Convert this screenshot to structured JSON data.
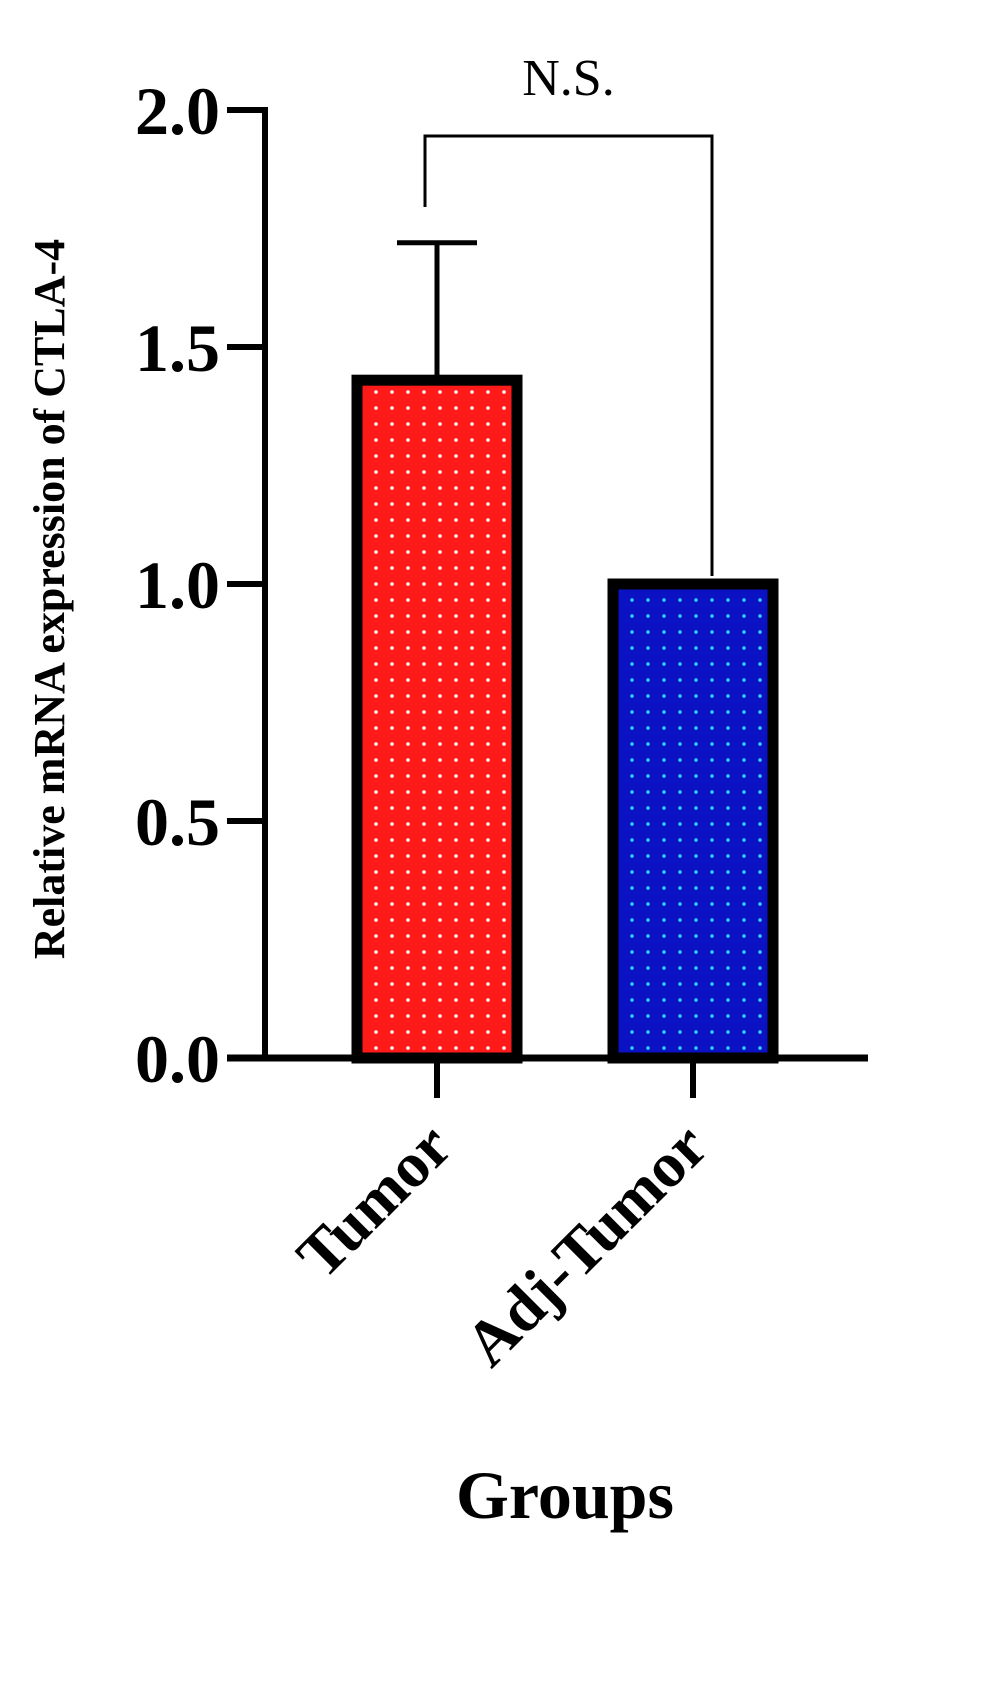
{
  "chart_data": {
    "type": "bar",
    "categories": [
      "Tumor",
      "Adj-Tumor"
    ],
    "values": [
      1.43,
      1.0
    ],
    "error_upper": [
      1.72,
      null
    ],
    "ylabel": "Relative mRNA expression of CTLA-4",
    "xlabel": "Groups",
    "ylim": [
      0,
      2.0
    ],
    "y_ticks": [
      {
        "value": 0.0,
        "label": "0.0"
      },
      {
        "value": 0.5,
        "label": "0.5"
      },
      {
        "value": 1.0,
        "label": "1.0"
      },
      {
        "value": 1.5,
        "label": "1.5"
      },
      {
        "value": 2.0,
        "label": "2.0"
      }
    ],
    "significance": {
      "label": "N.S.",
      "between": [
        "Tumor",
        "Adj-Tumor"
      ]
    },
    "grid": false,
    "legend": "none",
    "colors": {
      "Tumor": "#ff1a1a",
      "Adj-Tumor": "#0a12c4",
      "Tumor_dots": "#ffffff",
      "Adj-Tumor_dots": "#34d0ff",
      "outline": "#000000"
    }
  }
}
